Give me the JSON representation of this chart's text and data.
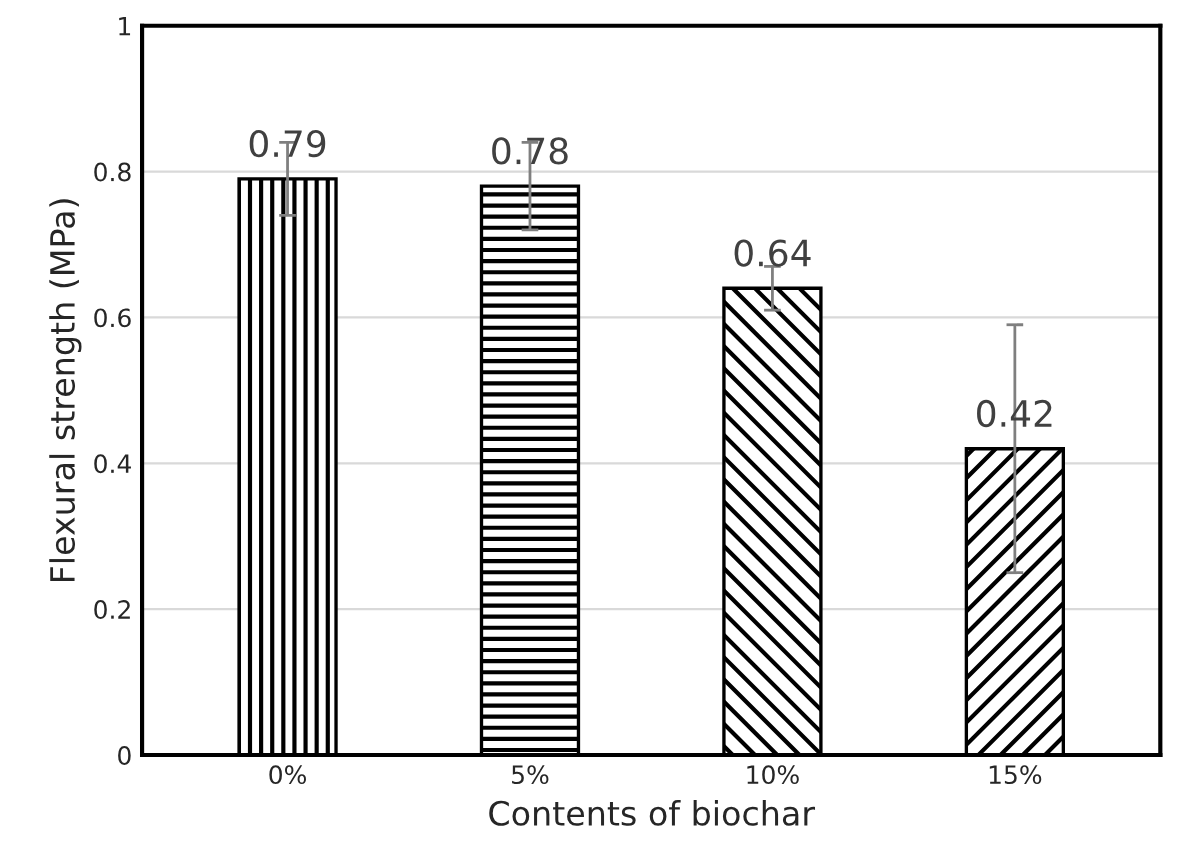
{
  "chart_data": {
    "type": "bar",
    "xlabel": "Contents of biochar",
    "ylabel": "Flexural strength (MPa)",
    "categories": [
      "0%",
      "5%",
      "10%",
      "15%"
    ],
    "values": [
      0.79,
      0.78,
      0.64,
      0.42
    ],
    "errors": [
      0.05,
      0.06,
      0.03,
      0.17
    ],
    "color": "#000000",
    "data_labels": true,
    "ylim": [
      0,
      1
    ],
    "yticks": [
      0,
      0.2,
      0.4,
      0.6,
      0.8,
      1
    ],
    "grid": "y"
  }
}
